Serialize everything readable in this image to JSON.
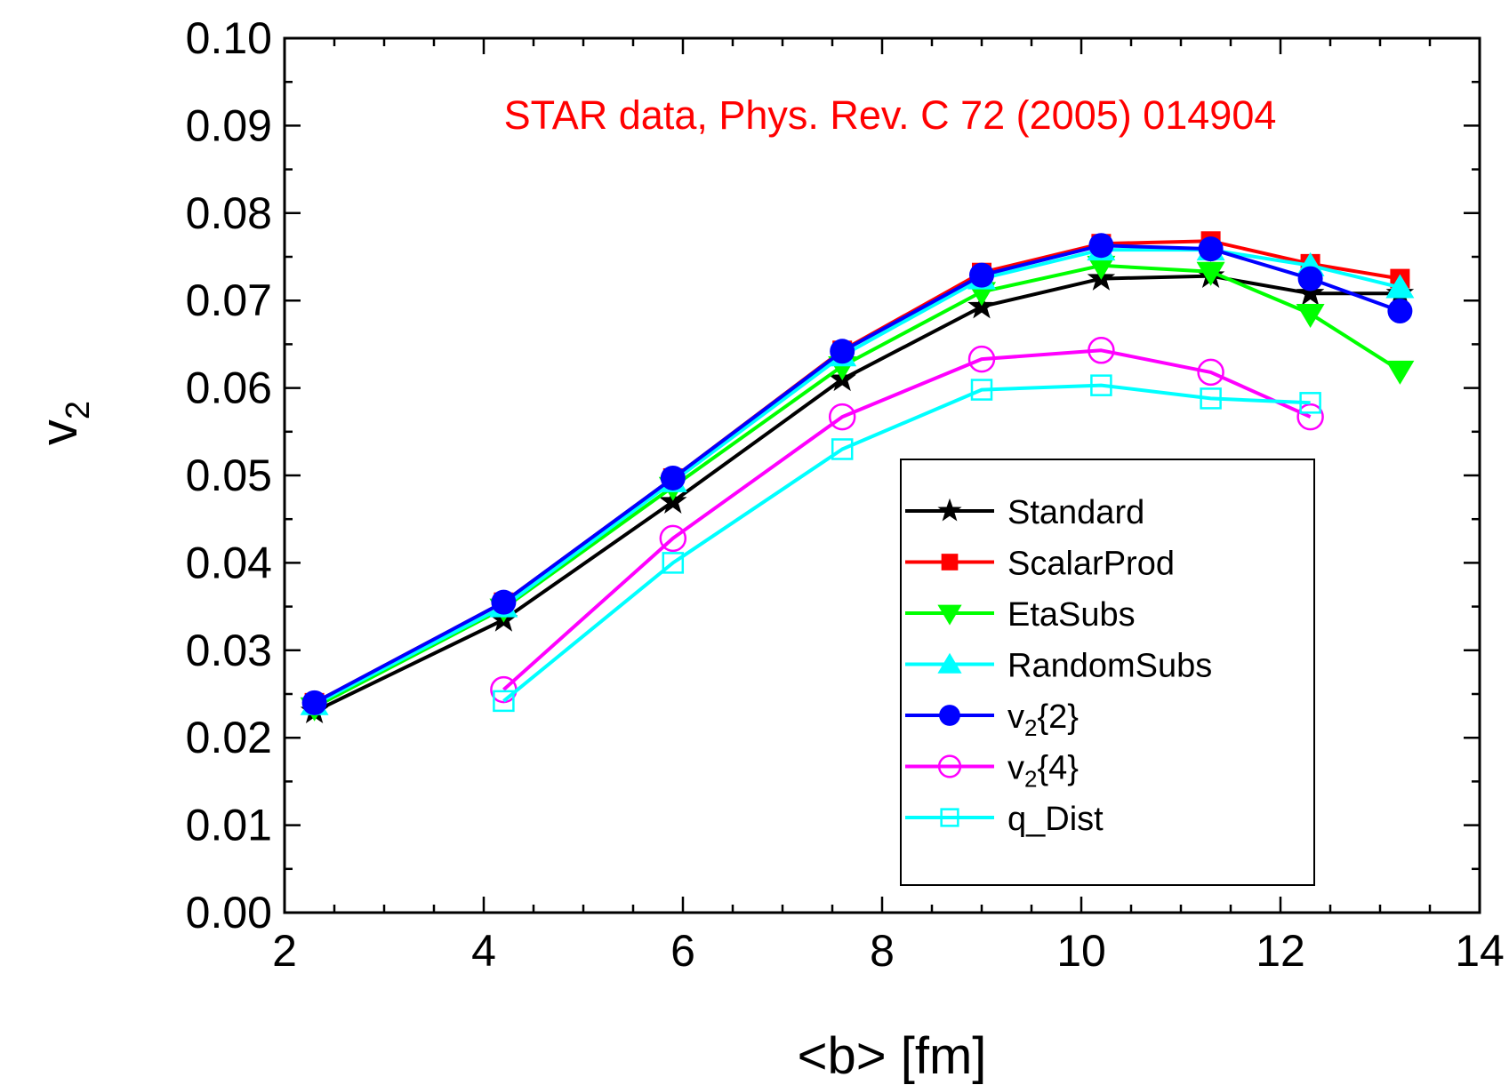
{
  "chart_data": {
    "type": "line",
    "annotation": "STAR data,   Phys. Rev. C 72 (2005) 014904",
    "xlabel": "<b> [fm]",
    "ylabel": "v",
    "ylabel_sub": "2",
    "xlim": [
      2,
      14
    ],
    "ylim": [
      0.0,
      0.1
    ],
    "x_ticks": [
      2,
      4,
      6,
      8,
      10,
      12,
      14
    ],
    "x_tick_labels": [
      "2",
      "4",
      "6",
      "8",
      "10",
      "12",
      "14"
    ],
    "y_ticks": [
      0.0,
      0.01,
      0.02,
      0.03,
      0.04,
      0.05,
      0.06,
      0.07,
      0.08,
      0.09,
      0.1
    ],
    "y_tick_labels": [
      "0.00",
      "0.01",
      "0.02",
      "0.03",
      "0.04",
      "0.05",
      "0.06",
      "0.07",
      "0.08",
      "0.09",
      "0.10"
    ],
    "grid": false,
    "legend_position": "lower-right",
    "series": [
      {
        "name": "Standard",
        "label_main": "Standard",
        "label_sub": "",
        "label_tail": "",
        "color": "#000000",
        "marker": "star",
        "x": [
          2.3,
          4.2,
          5.9,
          7.6,
          9.0,
          10.2,
          11.3,
          12.3,
          13.2
        ],
        "y": [
          0.023,
          0.0335,
          0.047,
          0.061,
          0.0693,
          0.0725,
          0.0728,
          0.0708,
          0.0708
        ]
      },
      {
        "name": "ScalarProd",
        "label_main": "ScalarProd",
        "label_sub": "",
        "label_tail": "",
        "color": "#ff0000",
        "marker": "square-filled",
        "x": [
          2.3,
          4.2,
          5.9,
          7.6,
          9.0,
          10.2,
          11.3,
          12.3,
          13.2
        ],
        "y": [
          0.024,
          0.0355,
          0.0497,
          0.0643,
          0.0732,
          0.0765,
          0.0768,
          0.0742,
          0.0725
        ]
      },
      {
        "name": "EtaSubs",
        "label_main": "EtaSubs",
        "label_sub": "",
        "label_tail": "",
        "color": "#00ff00",
        "marker": "triangle-down-filled",
        "x": [
          2.3,
          4.2,
          5.9,
          7.6,
          9.0,
          10.2,
          11.3,
          12.3,
          13.2
        ],
        "y": [
          0.0235,
          0.0348,
          0.0487,
          0.0625,
          0.071,
          0.074,
          0.0733,
          0.0685,
          0.062
        ]
      },
      {
        "name": "RandomSubs",
        "label_main": "RandomSubs",
        "label_sub": "",
        "label_tail": "",
        "color": "#00ffff",
        "marker": "triangle-up-filled",
        "x": [
          2.3,
          4.2,
          5.9,
          7.6,
          9.0,
          10.2,
          11.3,
          12.3,
          13.2
        ],
        "y": [
          0.0238,
          0.035,
          0.0493,
          0.0637,
          0.0725,
          0.0758,
          0.0758,
          0.074,
          0.0715
        ]
      },
      {
        "name": "v2{2}",
        "label_main": "v",
        "label_sub": "2",
        "label_tail": "{2}",
        "color": "#0000ff",
        "marker": "circle-filled",
        "x": [
          2.3,
          4.2,
          5.9,
          7.6,
          9.0,
          10.2,
          11.3,
          12.3,
          13.2
        ],
        "y": [
          0.024,
          0.0355,
          0.0497,
          0.0642,
          0.0729,
          0.0763,
          0.0759,
          0.0725,
          0.0688
        ]
      },
      {
        "name": "v2{4}",
        "label_main": "v",
        "label_sub": "2",
        "label_tail": "{4}",
        "color": "#ff00ff",
        "marker": "circle-open",
        "x": [
          4.2,
          5.9,
          7.6,
          9.0,
          10.2,
          11.3,
          12.3
        ],
        "y": [
          0.0255,
          0.0428,
          0.0567,
          0.0633,
          0.0643,
          0.0618,
          0.0567
        ]
      },
      {
        "name": "q_Dist",
        "label_main": "q_Dist",
        "label_sub": "",
        "label_tail": "",
        "color": "#00ffff",
        "marker": "square-open",
        "x": [
          4.2,
          5.9,
          7.6,
          9.0,
          10.2,
          11.3,
          12.3
        ],
        "y": [
          0.0242,
          0.04,
          0.053,
          0.0598,
          0.0603,
          0.0588,
          0.0583
        ]
      }
    ]
  }
}
